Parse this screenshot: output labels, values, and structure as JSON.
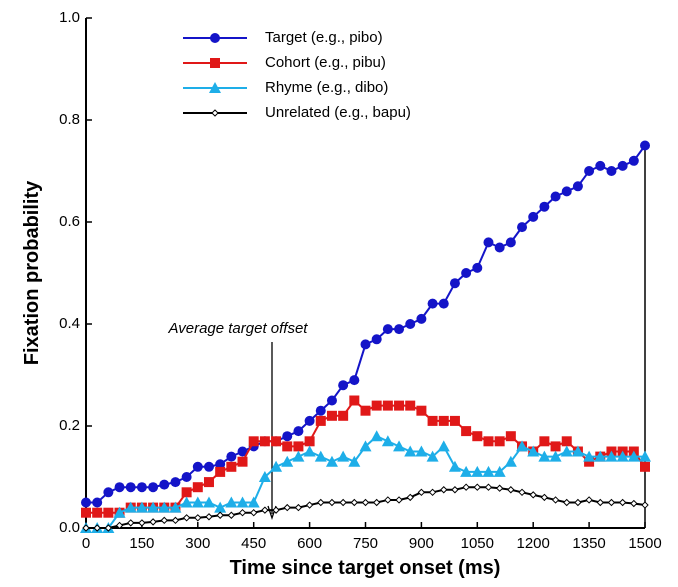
{
  "chart_data": {
    "type": "line",
    "xlabel": "Time  since  target  onset  (ms)",
    "ylabel": "Fixation  probability",
    "annotation": "Average target offset",
    "x": [
      0,
      30,
      60,
      90,
      120,
      150,
      180,
      210,
      240,
      270,
      300,
      330,
      360,
      390,
      420,
      450,
      480,
      510,
      540,
      570,
      600,
      630,
      660,
      690,
      720,
      750,
      780,
      810,
      840,
      870,
      900,
      930,
      960,
      990,
      1020,
      1050,
      1080,
      1110,
      1140,
      1170,
      1200,
      1230,
      1260,
      1290,
      1320,
      1350,
      1380,
      1410,
      1440,
      1470,
      1500
    ],
    "xlim": [
      0,
      1500
    ],
    "xticks": [
      0,
      150,
      300,
      450,
      600,
      750,
      900,
      1050,
      1200,
      1350,
      1500
    ],
    "ylim": [
      0,
      1
    ],
    "yticks": [
      {
        "value": 0,
        "label": "0.0"
      },
      0.2,
      0.4,
      0.6,
      0.8,
      {
        "value": 1,
        "label": "1.0"
      }
    ],
    "series": [
      {
        "name": "Target (e.g., pibo)",
        "color": "#1414c8",
        "marker": "circle",
        "values": [
          0.05,
          0.05,
          0.07,
          0.08,
          0.08,
          0.08,
          0.08,
          0.085,
          0.09,
          0.1,
          0.12,
          0.12,
          0.125,
          0.14,
          0.15,
          0.16,
          0.17,
          0.17,
          0.18,
          0.19,
          0.21,
          0.23,
          0.25,
          0.28,
          0.29,
          0.36,
          0.37,
          0.39,
          0.39,
          0.4,
          0.41,
          0.44,
          0.44,
          0.48,
          0.5,
          0.51,
          0.56,
          0.55,
          0.56,
          0.59,
          0.61,
          0.63,
          0.65,
          0.66,
          0.67,
          0.7,
          0.71,
          0.7,
          0.71,
          0.72,
          0.75
        ]
      },
      {
        "name": "Cohort (e.g., pibu)",
        "color": "#e01818",
        "marker": "square",
        "values": [
          0.03,
          0.03,
          0.03,
          0.03,
          0.04,
          0.04,
          0.04,
          0.04,
          0.04,
          0.07,
          0.08,
          0.09,
          0.11,
          0.12,
          0.13,
          0.17,
          0.17,
          0.17,
          0.16,
          0.16,
          0.17,
          0.21,
          0.22,
          0.22,
          0.25,
          0.23,
          0.24,
          0.24,
          0.24,
          0.24,
          0.23,
          0.21,
          0.21,
          0.21,
          0.19,
          0.18,
          0.17,
          0.17,
          0.18,
          0.16,
          0.15,
          0.17,
          0.16,
          0.17,
          0.15,
          0.13,
          0.14,
          0.15,
          0.15,
          0.15,
          0.12
        ]
      },
      {
        "name": "Rhyme (e.g., dibo)",
        "color": "#1eaee8",
        "marker": "triangle",
        "values": [
          0,
          0,
          0,
          0.03,
          0.04,
          0.04,
          0.04,
          0.04,
          0.04,
          0.05,
          0.05,
          0.05,
          0.04,
          0.05,
          0.05,
          0.05,
          0.1,
          0.12,
          0.13,
          0.14,
          0.15,
          0.14,
          0.13,
          0.14,
          0.13,
          0.16,
          0.18,
          0.17,
          0.16,
          0.15,
          0.15,
          0.14,
          0.16,
          0.12,
          0.11,
          0.11,
          0.11,
          0.11,
          0.13,
          0.16,
          0.15,
          0.14,
          0.14,
          0.15,
          0.15,
          0.14,
          0.14,
          0.14,
          0.14,
          0.14,
          0.14
        ]
      },
      {
        "name": "Unrelated (e.g., bapu)",
        "color": "#000000",
        "marker": "diamond",
        "values": [
          0,
          0,
          0,
          0.005,
          0.01,
          0.01,
          0.012,
          0.015,
          0.015,
          0.02,
          0.02,
          0.022,
          0.025,
          0.025,
          0.03,
          0.03,
          0.035,
          0.035,
          0.04,
          0.04,
          0.045,
          0.05,
          0.05,
          0.05,
          0.05,
          0.05,
          0.05,
          0.055,
          0.055,
          0.06,
          0.07,
          0.07,
          0.075,
          0.075,
          0.08,
          0.08,
          0.08,
          0.078,
          0.075,
          0.07,
          0.065,
          0.06,
          0.055,
          0.05,
          0.05,
          0.055,
          0.05,
          0.05,
          0.05,
          0.048,
          0.045
        ]
      }
    ]
  }
}
